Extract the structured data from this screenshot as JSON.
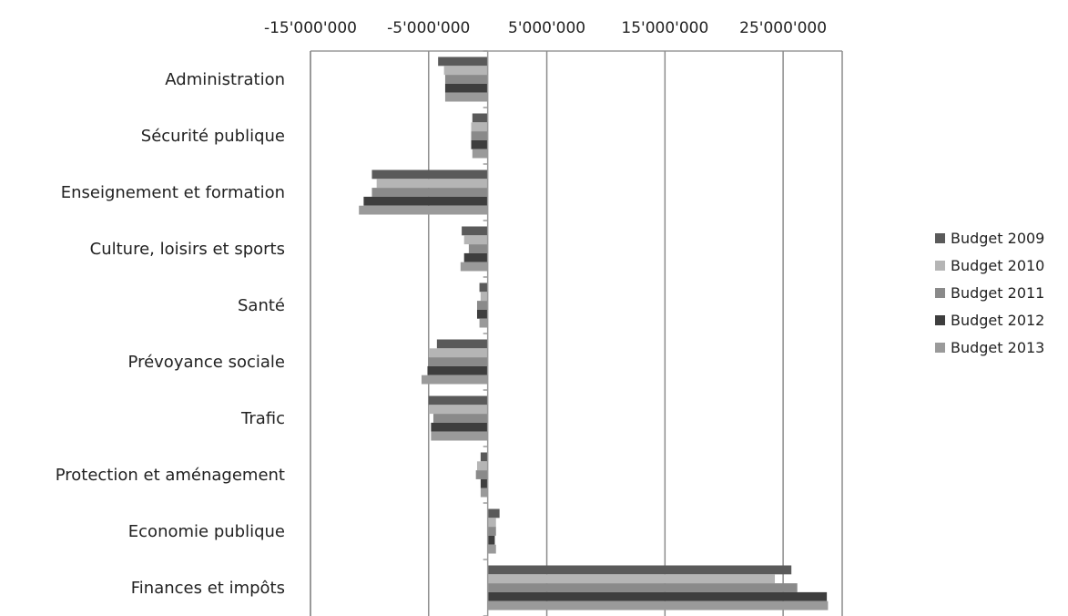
{
  "chart_data": {
    "type": "bar",
    "orientation": "horizontal",
    "title": "",
    "xlabel": "",
    "ylabel": "",
    "xlim": [
      -15000000,
      30000000
    ],
    "x_ticks": [
      -15000000,
      -5000000,
      5000000,
      15000000,
      25000000
    ],
    "x_tick_labels": [
      "-15'000'000",
      "-5'000'000",
      "5'000'000",
      "15'000'000",
      "25'000'000"
    ],
    "x_axis_position": "top",
    "grid": "vertical-major",
    "legend_position": "right",
    "categories": [
      "Administration",
      "Sécurité publique",
      "Enseignement et formation",
      "Culture, loisirs et sports",
      "Santé",
      "Prévoyance sociale",
      "Trafic",
      "Protection et aménagement",
      "Economie publique",
      "Finances et impôts"
    ],
    "series": [
      {
        "name": "Budget 2009",
        "color": "#5a5a5a",
        "values": [
          -4200000,
          -1300000,
          -9800000,
          -2200000,
          -700000,
          -4300000,
          -5000000,
          -600000,
          1000000,
          25700000
        ]
      },
      {
        "name": "Budget 2010",
        "color": "#b5b5b5",
        "values": [
          -3700000,
          -1400000,
          -9400000,
          -2000000,
          -600000,
          -5000000,
          -5000000,
          -900000,
          700000,
          24300000
        ]
      },
      {
        "name": "Budget 2011",
        "color": "#8a8a8a",
        "values": [
          -3600000,
          -1400000,
          -9800000,
          -1600000,
          -900000,
          -5000000,
          -4600000,
          -1000000,
          700000,
          26200000
        ]
      },
      {
        "name": "Budget 2012",
        "color": "#3e3e3e",
        "values": [
          -3600000,
          -1400000,
          -10500000,
          -2000000,
          -900000,
          -5100000,
          -4800000,
          -600000,
          600000,
          28700000
        ]
      },
      {
        "name": "Budget 2013",
        "color": "#9a9a9a",
        "values": [
          -3600000,
          -1300000,
          -10900000,
          -2300000,
          -700000,
          -5600000,
          -4800000,
          -600000,
          700000,
          28800000
        ]
      }
    ]
  }
}
